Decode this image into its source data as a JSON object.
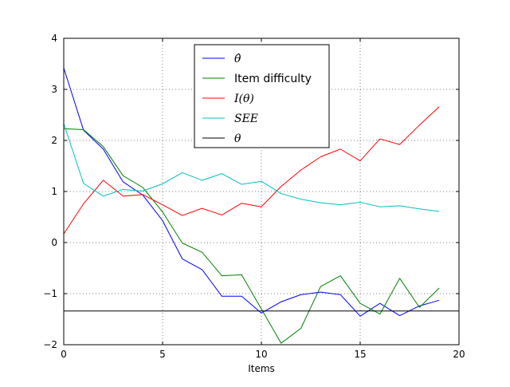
{
  "chart_data": {
    "type": "line",
    "title": "",
    "xlabel": "Items",
    "ylabel": "",
    "xlim": [
      0,
      20
    ],
    "ylim": [
      -2,
      4
    ],
    "xticks": [
      0,
      5,
      10,
      15,
      20
    ],
    "xtick_labels": [
      "0",
      "5",
      "10",
      "15",
      "20"
    ],
    "yticks": [
      -2,
      -1,
      0,
      1,
      2,
      3,
      4
    ],
    "ytick_labels": [
      "−2",
      "−1",
      "0",
      "1",
      "2",
      "3",
      "4"
    ],
    "grid": true,
    "legend_position": "upper-center",
    "x": [
      0,
      1,
      2,
      3,
      4,
      5,
      6,
      7,
      8,
      9,
      10,
      11,
      12,
      13,
      14,
      15,
      16,
      17,
      18,
      19
    ],
    "series": [
      {
        "name": "θ̂",
        "color": "#0000ff",
        "values": [
          3.42,
          2.2,
          1.83,
          1.19,
          0.93,
          0.43,
          -0.32,
          -0.53,
          -1.05,
          -1.05,
          -1.38,
          -1.16,
          -1.02,
          -0.97,
          -1.02,
          -1.44,
          -1.19,
          -1.43,
          -1.24,
          -1.13
        ]
      },
      {
        "name": "Item difficulty",
        "color": "#008000",
        "values": [
          2.23,
          2.21,
          1.88,
          1.31,
          1.08,
          0.6,
          -0.01,
          -0.19,
          -0.65,
          -0.63,
          -1.3,
          -1.97,
          -1.68,
          -0.86,
          -0.65,
          -1.19,
          -1.4,
          -0.7,
          -1.27,
          -0.89
        ]
      },
      {
        "name": "I(θ)",
        "color": "#ff0000",
        "values": [
          0.17,
          0.76,
          1.22,
          0.91,
          0.94,
          0.74,
          0.53,
          0.67,
          0.54,
          0.77,
          0.7,
          1.1,
          1.42,
          1.68,
          1.83,
          1.6,
          2.03,
          1.92,
          2.3,
          2.66
        ]
      },
      {
        "name": "SEE",
        "color": "#00bfbf",
        "values": [
          2.33,
          1.16,
          0.91,
          1.04,
          1.01,
          1.15,
          1.37,
          1.22,
          1.35,
          1.14,
          1.2,
          0.96,
          0.85,
          0.78,
          0.74,
          0.79,
          0.7,
          0.72,
          0.66,
          0.61
        ]
      },
      {
        "name": "θ",
        "color": "#000000",
        "values": [
          -1.34,
          -1.34,
          -1.34,
          -1.34,
          -1.34,
          -1.34,
          -1.34,
          -1.34,
          -1.34,
          -1.34,
          -1.34,
          -1.34,
          -1.34,
          -1.34,
          -1.34,
          -1.34,
          -1.34,
          -1.34,
          -1.34,
          -1.34
        ],
        "horizontal_line_full_width": true
      }
    ]
  }
}
